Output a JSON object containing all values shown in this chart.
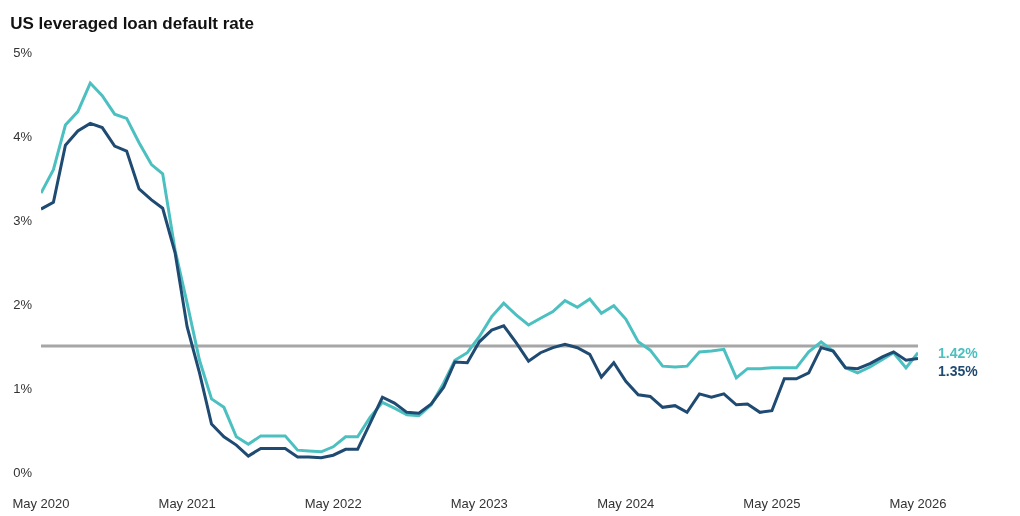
{
  "chart_data": {
    "type": "line",
    "title": "US leveraged loan default rate",
    "x": [
      "2020-05",
      "2020-06",
      "2020-07",
      "2020-08",
      "2020-09",
      "2020-10",
      "2020-11",
      "2020-12",
      "2021-01",
      "2021-02",
      "2021-03",
      "2021-04",
      "2021-05",
      "2021-06",
      "2021-07",
      "2021-08",
      "2021-09",
      "2021-10",
      "2021-11",
      "2021-12",
      "2022-01",
      "2022-02",
      "2022-03",
      "2022-04",
      "2022-05",
      "2022-06",
      "2022-07",
      "2022-08",
      "2022-09",
      "2022-10",
      "2022-11",
      "2022-12",
      "2023-01",
      "2023-02",
      "2023-03",
      "2023-04",
      "2023-05",
      "2023-06",
      "2023-07",
      "2023-08",
      "2023-09",
      "2023-10",
      "2023-11",
      "2023-12",
      "2024-01",
      "2024-02",
      "2024-03",
      "2024-04",
      "2024-05",
      "2024-06",
      "2024-07",
      "2024-08",
      "2024-09",
      "2024-10",
      "2024-11",
      "2024-12",
      "2025-01",
      "2025-02",
      "2025-03",
      "2025-04",
      "2025-05",
      "2025-06",
      "2025-07",
      "2025-08",
      "2025-09",
      "2025-10",
      "2025-11",
      "2025-12",
      "2026-01",
      "2026-02",
      "2026-03",
      "2026-04",
      "2026-05"
    ],
    "series": [
      {
        "color": "#4cc0c0",
        "values": [
          3.32,
          3.6,
          4.13,
          4.29,
          4.63,
          4.48,
          4.26,
          4.21,
          3.92,
          3.66,
          3.55,
          2.64,
          2.01,
          1.33,
          0.87,
          0.77,
          0.42,
          0.33,
          0.43,
          0.43,
          0.43,
          0.26,
          0.25,
          0.24,
          0.3,
          0.42,
          0.42,
          0.65,
          0.83,
          0.76,
          0.68,
          0.67,
          0.8,
          1.06,
          1.33,
          1.42,
          1.61,
          1.85,
          2.01,
          1.87,
          1.75,
          1.83,
          1.91,
          2.04,
          1.96,
          2.06,
          1.89,
          1.98,
          1.82,
          1.55,
          1.45,
          1.26,
          1.25,
          1.26,
          1.43,
          1.44,
          1.46,
          1.12,
          1.23,
          1.23,
          1.24,
          1.24,
          1.24,
          1.43,
          1.55,
          1.44,
          1.24,
          1.18,
          1.25,
          1.34,
          1.42,
          1.24,
          1.42
        ],
        "value_labels": [
          null,
          null,
          null,
          null,
          null,
          null,
          null,
          null,
          null,
          null,
          null,
          null,
          null,
          null,
          null,
          null,
          null,
          null,
          null,
          null,
          null,
          null,
          null,
          null,
          null,
          null,
          null,
          null,
          null,
          null,
          null,
          null,
          null,
          null,
          null,
          null,
          null,
          null,
          null,
          null,
          null,
          null,
          null,
          null,
          null,
          null,
          null,
          null,
          null,
          null,
          null,
          null,
          null,
          null,
          null,
          null,
          null,
          null,
          null,
          null,
          null,
          null,
          null,
          null,
          null,
          null,
          null,
          null,
          null,
          null,
          null,
          null,
          "1.42%"
        ]
      },
      {
        "color": "#1f4a72",
        "values": [
          3.13,
          3.21,
          3.89,
          4.06,
          4.15,
          4.1,
          3.88,
          3.82,
          3.37,
          3.24,
          3.14,
          2.61,
          1.73,
          1.18,
          0.57,
          0.42,
          0.32,
          0.19,
          0.28,
          0.28,
          0.28,
          0.18,
          0.18,
          0.17,
          0.2,
          0.27,
          0.27,
          0.58,
          0.89,
          0.82,
          0.71,
          0.7,
          0.81,
          1.01,
          1.31,
          1.3,
          1.55,
          1.69,
          1.74,
          1.54,
          1.32,
          1.42,
          1.48,
          1.52,
          1.48,
          1.4,
          1.13,
          1.3,
          1.08,
          0.92,
          0.9,
          0.77,
          0.79,
          0.71,
          0.93,
          0.89,
          0.93,
          0.8,
          0.81,
          0.71,
          0.73,
          1.11,
          1.11,
          1.18,
          1.48,
          1.44,
          1.24,
          1.23,
          1.29,
          1.37,
          1.43,
          1.33,
          1.35
        ],
        "value_labels": [
          null,
          null,
          null,
          null,
          null,
          null,
          null,
          null,
          null,
          null,
          null,
          null,
          null,
          null,
          null,
          null,
          null,
          null,
          null,
          null,
          null,
          null,
          null,
          null,
          null,
          null,
          null,
          null,
          null,
          null,
          null,
          null,
          null,
          null,
          null,
          null,
          null,
          null,
          null,
          null,
          null,
          null,
          null,
          null,
          null,
          null,
          null,
          null,
          null,
          null,
          null,
          null,
          null,
          null,
          null,
          null,
          null,
          null,
          null,
          null,
          null,
          null,
          null,
          null,
          null,
          null,
          null,
          null,
          null,
          null,
          null,
          null,
          "1.35%"
        ]
      }
    ],
    "xlim": [
      "2020-05",
      "2026-05"
    ],
    "xticks": [
      {
        "value": "2020-05",
        "label": "May 2020"
      },
      {
        "value": "2021-05",
        "label": "May 2021"
      },
      {
        "value": "2022-05",
        "label": "May 2022"
      },
      {
        "value": "2023-05",
        "label": "May 2023"
      },
      {
        "value": "2024-05",
        "label": "May 2024"
      },
      {
        "value": "2025-05",
        "label": "May 2025"
      },
      {
        "value": "2026-05",
        "label": "May 2026"
      }
    ],
    "ylim": [
      0,
      5
    ],
    "yticks": [
      {
        "value": 0,
        "label": "0%"
      },
      {
        "value": 1,
        "label": "1%"
      },
      {
        "value": 2,
        "label": "2%"
      },
      {
        "value": 3,
        "label": "3%"
      },
      {
        "value": 4,
        "label": "4%"
      },
      {
        "value": 5,
        "label": "5%"
      }
    ],
    "ref_lines": [
      {
        "axis": "y",
        "value": 1.5,
        "color": "#a6a6a6"
      }
    ],
    "grid": false,
    "marker": "none",
    "line_style": "solid"
  }
}
